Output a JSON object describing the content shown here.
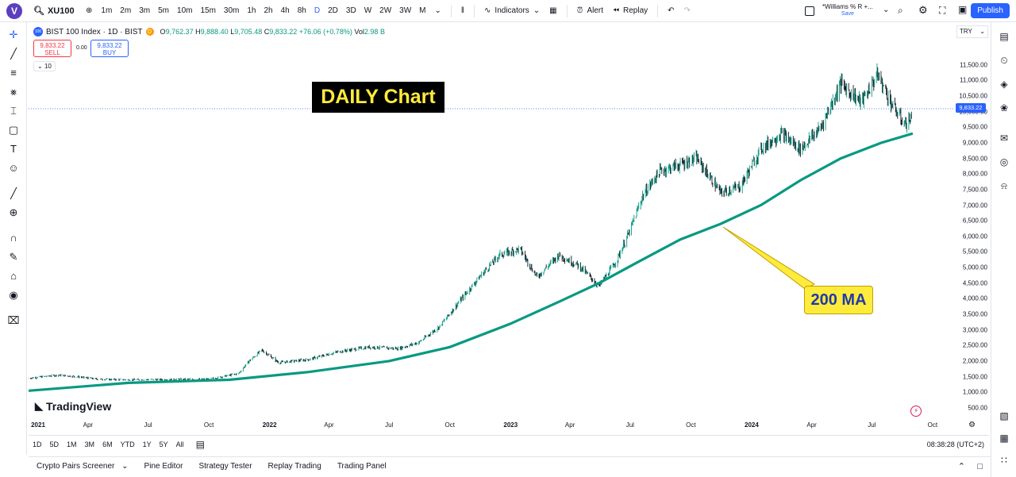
{
  "toolbar": {
    "logo": "V",
    "symbol": "XU100",
    "intervals": [
      "1m",
      "2m",
      "3m",
      "5m",
      "10m",
      "15m",
      "30m",
      "1h",
      "2h",
      "4h",
      "8h",
      "D",
      "2D",
      "3D",
      "W",
      "2W",
      "3W",
      "M"
    ],
    "active_interval": "D",
    "indicators_label": "Indicators",
    "alert_label": "Alert",
    "replay_label": "Replay",
    "layout_name": "*Williams % R +...",
    "save_label": "Save",
    "publish_label": "Publish"
  },
  "legend": {
    "badge": "100",
    "title": "BIST 100 Index · 1D · BIST",
    "status_badge": "D",
    "open_label": "O",
    "open": "9,762.37",
    "high_label": "H",
    "high": "9,888.40",
    "low_label": "L",
    "low": "9,705.48",
    "close_label": "C",
    "close": "9,833.22",
    "change": "+76.06 (+0.78%)",
    "vol_label": "Vol",
    "vol": "2.98 B",
    "sell_price": "9,833.22",
    "sell_label": "SELL",
    "spread": "0.00",
    "buy_price": "9,833.22",
    "buy_label": "BUY",
    "collapse_value": "10"
  },
  "price_axis": {
    "currency": "TRY",
    "current_price": "9,833.22"
  },
  "annotations": {
    "daily": "DAILY Chart",
    "ma": "200 MA"
  },
  "watermark": "TradingView",
  "range_buttons": [
    "1D",
    "5D",
    "1M",
    "3M",
    "6M",
    "YTD",
    "1Y",
    "5Y",
    "All"
  ],
  "clock": "08:38:28 (UTC+2)",
  "bottom_tabs": [
    "Crypto Pairs Screener",
    "Pine Editor",
    "Strategy Tester",
    "Replay Trading",
    "Trading Panel"
  ],
  "colors": {
    "candle_up": "#089981",
    "candle_down": "#131722",
    "ma_line": "#089981",
    "accent": "#2962ff",
    "annotation_bg": "#ffeb3b"
  },
  "chart_data": {
    "type": "line",
    "title": "BIST 100 Index · 1D · BIST",
    "xlabel": "",
    "ylabel": "",
    "ylim": [
      420,
      11800
    ],
    "y_ticks": [
      "500.00",
      "1,000.00",
      "1,500.00",
      "2,000.00",
      "2,500.00",
      "3,000.00",
      "3,500.00",
      "4,000.00",
      "4,500.00",
      "5,000.00",
      "5,500.00",
      "6,000.00",
      "6,500.00",
      "7,000.00",
      "7,500.00",
      "8,000.00",
      "8,500.00",
      "9,000.00",
      "9,500.00",
      "10,000.00",
      "10,500.00",
      "11,000.00",
      "11,500.00"
    ],
    "x_ticks": [
      {
        "label": "2021",
        "year": true
      },
      {
        "label": "Apr"
      },
      {
        "label": "Jul"
      },
      {
        "label": "Oct"
      },
      {
        "label": "2022",
        "year": true
      },
      {
        "label": "Apr"
      },
      {
        "label": "Jul"
      },
      {
        "label": "Oct"
      },
      {
        "label": "2023",
        "year": true
      },
      {
        "label": "Apr"
      },
      {
        "label": "Jul"
      },
      {
        "label": "Oct"
      },
      {
        "label": "2024",
        "year": true
      },
      {
        "label": "Apr"
      },
      {
        "label": "Jul"
      },
      {
        "label": "Oct"
      }
    ],
    "series": [
      {
        "name": "BIST 100 Index",
        "dates": [
          "2021-01-01",
          "2021-02-15",
          "2021-03-15",
          "2021-04-15",
          "2021-06-01",
          "2021-08-01",
          "2021-10-01",
          "2021-11-15",
          "2021-12-01",
          "2021-12-20",
          "2022-01-15",
          "2022-03-01",
          "2022-04-15",
          "2022-06-01",
          "2022-07-15",
          "2022-08-15",
          "2022-09-15",
          "2022-10-15",
          "2022-11-15",
          "2022-12-15",
          "2023-01-15",
          "2023-02-10",
          "2023-03-15",
          "2023-04-15",
          "2023-05-15",
          "2023-06-10",
          "2023-07-01",
          "2023-07-20",
          "2023-08-15",
          "2023-09-15",
          "2023-10-10",
          "2023-11-15",
          "2023-12-15",
          "2024-01-15",
          "2024-02-15",
          "2024-03-15",
          "2024-04-15",
          "2024-05-15",
          "2024-06-15",
          "2024-07-10",
          "2024-08-01",
          "2024-08-20",
          "2024-09-01"
        ],
        "values": [
          1450,
          1550,
          1500,
          1420,
          1400,
          1410,
          1420,
          1600,
          2000,
          2350,
          1950,
          2050,
          2300,
          2450,
          2400,
          2600,
          3100,
          3900,
          4700,
          5400,
          5600,
          4700,
          5400,
          5050,
          4400,
          5200,
          6200,
          7300,
          8100,
          8300,
          8500,
          7400,
          7600,
          8800,
          9300,
          8800,
          9500,
          10900,
          10300,
          11200,
          10200,
          9600,
          9833
        ]
      },
      {
        "name": "200 MA",
        "dates": [
          "2021-01-01",
          "2021-06-01",
          "2021-11-01",
          "2022-03-01",
          "2022-07-01",
          "2022-10-01",
          "2023-01-01",
          "2023-03-15",
          "2023-05-15",
          "2023-07-15",
          "2023-09-15",
          "2023-11-15",
          "2024-01-15",
          "2024-03-15",
          "2024-05-15",
          "2024-07-15",
          "2024-09-01"
        ],
        "values": [
          1050,
          1300,
          1400,
          1650,
          2000,
          2450,
          3200,
          3900,
          4500,
          5200,
          5900,
          6400,
          7000,
          7800,
          8500,
          9000,
          9300
        ]
      }
    ]
  }
}
